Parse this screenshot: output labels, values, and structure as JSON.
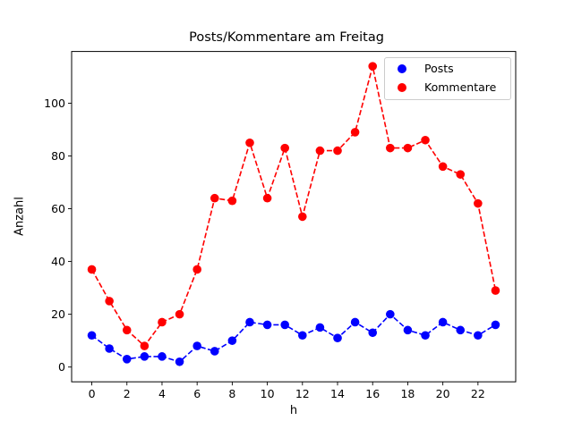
{
  "chart_data": {
    "type": "line",
    "title": "Posts/Kommentare am Freitag",
    "xlabel": "h",
    "ylabel": "Anzahl",
    "x": [
      0,
      1,
      2,
      3,
      4,
      5,
      6,
      7,
      8,
      9,
      10,
      11,
      12,
      13,
      14,
      15,
      16,
      17,
      18,
      19,
      20,
      21,
      22,
      23
    ],
    "xticks": [
      0,
      2,
      4,
      6,
      8,
      10,
      12,
      14,
      16,
      18,
      20,
      22
    ],
    "yticks": [
      0,
      20,
      40,
      60,
      80,
      100
    ],
    "xlim": [
      -1.15,
      24.15
    ],
    "ylim": [
      -5.6,
      119.6
    ],
    "grid": false,
    "legend_position": "upper right",
    "series": [
      {
        "name": "Posts",
        "color": "#0000ff",
        "style": "dashed line with circle markers",
        "values": [
          12,
          7,
          3,
          4,
          4,
          2,
          8,
          6,
          10,
          17,
          16,
          16,
          12,
          15,
          11,
          17,
          13,
          20,
          14,
          12,
          17,
          14,
          12,
          16
        ]
      },
      {
        "name": "Kommentare",
        "color": "#ff0000",
        "style": "dashed line with circle markers",
        "values": [
          37,
          25,
          14,
          8,
          17,
          20,
          37,
          64,
          63,
          85,
          64,
          83,
          57,
          82,
          82,
          89,
          114,
          83,
          83,
          86,
          76,
          73,
          62,
          29
        ]
      }
    ]
  }
}
